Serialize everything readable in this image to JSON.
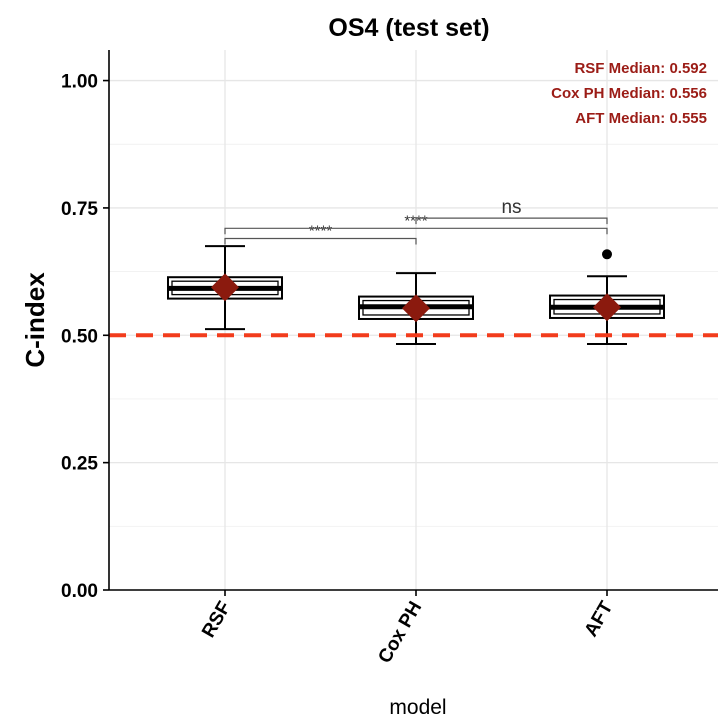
{
  "chart_data": {
    "type": "box",
    "title": "OS4 (test set)",
    "xlabel": "model",
    "ylabel": "C-index",
    "ylim": [
      0,
      1.06
    ],
    "yticks": [
      "0.00",
      "0.25",
      "0.50",
      "0.75",
      "1.00"
    ],
    "yticks_values": [
      0,
      0.25,
      0.5,
      0.75,
      1.0
    ],
    "grid": true,
    "categories": [
      "RSF",
      "Cox PH",
      "AFT"
    ],
    "boxes": [
      {
        "name": "RSF",
        "whisker_low": 0.512,
        "q1": 0.572,
        "median": 0.592,
        "q3": 0.614,
        "whisker_high": 0.675,
        "mean": 0.594,
        "outliers": []
      },
      {
        "name": "Cox PH",
        "whisker_low": 0.483,
        "q1": 0.532,
        "median": 0.556,
        "q3": 0.576,
        "whisker_high": 0.622,
        "mean": 0.553,
        "outliers": []
      },
      {
        "name": "AFT",
        "whisker_low": 0.483,
        "q1": 0.534,
        "median": 0.555,
        "q3": 0.578,
        "whisker_high": 0.616,
        "mean": 0.555,
        "outliers": [
          0.659
        ]
      }
    ],
    "reference_line": {
      "y": 0.5,
      "color": "#f23c1c",
      "style": "dashed"
    },
    "annotations": [
      "RSF Median: 0.592",
      "Cox PH Median: 0.556",
      "AFT Median: 0.555"
    ],
    "comparisons": [
      {
        "from": "RSF",
        "to": "Cox PH",
        "label": "****",
        "y": 0.69
      },
      {
        "from": "RSF",
        "to": "AFT",
        "label": "****",
        "y": 0.71
      },
      {
        "from": "Cox PH",
        "to": "AFT",
        "label": "ns",
        "y": 0.73
      }
    ],
    "colors": {
      "mean_marker": "#8b1a0e",
      "annotation": "#9b1c16",
      "reference": "#f23c1c"
    }
  }
}
